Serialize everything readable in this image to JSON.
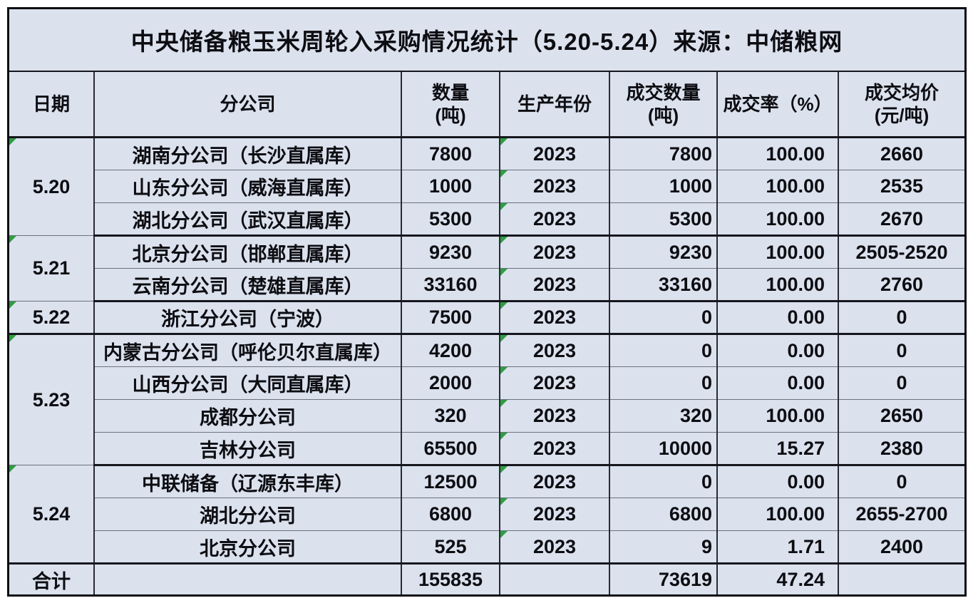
{
  "title": "中央储备粮玉米周轮入采购情况统计（5.20-5.24）来源：中储粮网",
  "columns": [
    {
      "label": "日期"
    },
    {
      "label": "分公司"
    },
    {
      "label": "数量",
      "sub": "(吨)"
    },
    {
      "label": "生产年份"
    },
    {
      "label": "成交数量",
      "sub": "(吨)"
    },
    {
      "label": "成交率（%）"
    },
    {
      "label": "成交均价",
      "sub": "(元/吨)"
    }
  ],
  "colors": {
    "cell_bg": "#dbe2ee",
    "grid_dark": "#16161e",
    "grid_light": "#6b717d",
    "flag_green": "#2e9e41",
    "text": "#0d0d12"
  },
  "chart_data": {
    "type": "table",
    "title": "中央储备粮玉米周轮入采购情况统计（5.20-5.24）来源：中储粮网",
    "column_headers": [
      "日期",
      "分公司",
      "数量(吨)",
      "生产年份",
      "成交数量(吨)",
      "成交率（%）",
      "成交均价(元/吨)"
    ],
    "groups": [
      {
        "date": "5.20",
        "rows": [
          {
            "branch": "湖南分公司（长沙直属库）",
            "quantity": "7800",
            "year": "2023",
            "deal_quantity": "7800",
            "deal_rate": "100.00",
            "avg_price": "2660"
          },
          {
            "branch": "山东分公司（威海直属库）",
            "quantity": "1000",
            "year": "2023",
            "deal_quantity": "1000",
            "deal_rate": "100.00",
            "avg_price": "2535"
          },
          {
            "branch": "湖北分公司（武汉直属库）",
            "quantity": "5300",
            "year": "2023",
            "deal_quantity": "5300",
            "deal_rate": "100.00",
            "avg_price": "2670"
          }
        ]
      },
      {
        "date": "5.21",
        "rows": [
          {
            "branch": "北京分公司（邯郸直属库）",
            "quantity": "9230",
            "year": "2023",
            "deal_quantity": "9230",
            "deal_rate": "100.00",
            "avg_price": "2505-2520"
          },
          {
            "branch": "云南分公司（楚雄直属库）",
            "quantity": "33160",
            "year": "2023",
            "deal_quantity": "33160",
            "deal_rate": "100.00",
            "avg_price": "2760"
          }
        ]
      },
      {
        "date": "5.22",
        "rows": [
          {
            "branch": "浙江分公司（宁波）",
            "quantity": "7500",
            "year": "2023",
            "deal_quantity": "0",
            "deal_rate": "0.00",
            "avg_price": "0"
          }
        ]
      },
      {
        "date": "5.23",
        "rows": [
          {
            "branch": "内蒙古分公司（呼伦贝尔直属库）",
            "quantity": "4200",
            "year": "2023",
            "deal_quantity": "0",
            "deal_rate": "0.00",
            "avg_price": "0"
          },
          {
            "branch": "山西分公司（大同直属库）",
            "quantity": "2000",
            "year": "2023",
            "deal_quantity": "0",
            "deal_rate": "0.00",
            "avg_price": "0"
          },
          {
            "branch": "成都分公司",
            "quantity": "320",
            "year": "2023",
            "deal_quantity": "320",
            "deal_rate": "100.00",
            "avg_price": "2650"
          },
          {
            "branch": "吉林分公司",
            "quantity": "65500",
            "year": "2023",
            "deal_quantity": "10000",
            "deal_rate": "15.27",
            "avg_price": "2380"
          }
        ]
      },
      {
        "date": "5.24",
        "rows": [
          {
            "branch": "中联储备（辽源东丰库）",
            "quantity": "12500",
            "year": "2023",
            "deal_quantity": "0",
            "deal_rate": "0.00",
            "avg_price": "0"
          },
          {
            "branch": "湖北分公司",
            "quantity": "6800",
            "year": "2023",
            "deal_quantity": "6800",
            "deal_rate": "100.00",
            "avg_price": "2655-2700"
          },
          {
            "branch": "北京分公司",
            "quantity": "525",
            "year": "2023",
            "deal_quantity": "9",
            "deal_rate": "1.71",
            "avg_price": "2400"
          }
        ]
      }
    ],
    "total": {
      "label": "合计",
      "branch": "",
      "quantity": "155835",
      "year": "",
      "deal_quantity": "73619",
      "deal_rate": "47.24",
      "avg_price": ""
    }
  }
}
